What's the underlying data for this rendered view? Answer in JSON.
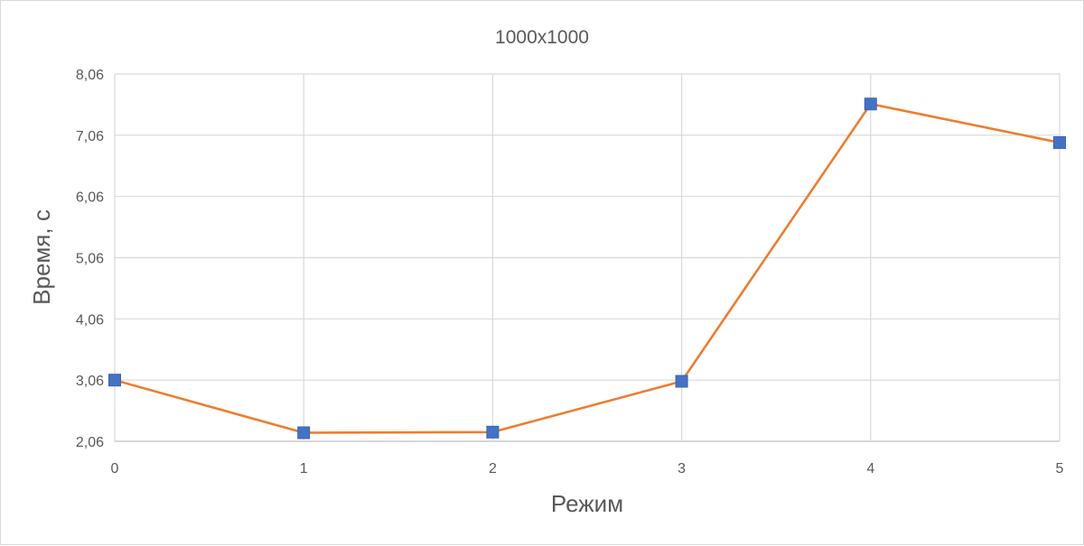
{
  "chart_data": {
    "type": "line",
    "title": "1000x1000",
    "xlabel": "Режим",
    "ylabel": "Время, с",
    "x": [
      0,
      1,
      2,
      3,
      4,
      5
    ],
    "x_ticks": [
      "0",
      "1",
      "2",
      "3",
      "4",
      "5"
    ],
    "y_ticks": [
      "2,06",
      "3,06",
      "4,06",
      "5,06",
      "6,06",
      "7,06",
      "8,06"
    ],
    "y_tick_values": [
      2.06,
      3.06,
      4.06,
      5.06,
      6.06,
      7.06,
      8.06
    ],
    "ylim": [
      2.06,
      8.06
    ],
    "xlim": [
      0,
      5
    ],
    "grid": true,
    "series": [
      {
        "values": [
          3.06,
          2.2,
          2.21,
          3.04,
          7.57,
          6.94
        ],
        "line_color": "#ed7d31",
        "marker_color": "#4472c4",
        "marker": "square"
      }
    ]
  }
}
